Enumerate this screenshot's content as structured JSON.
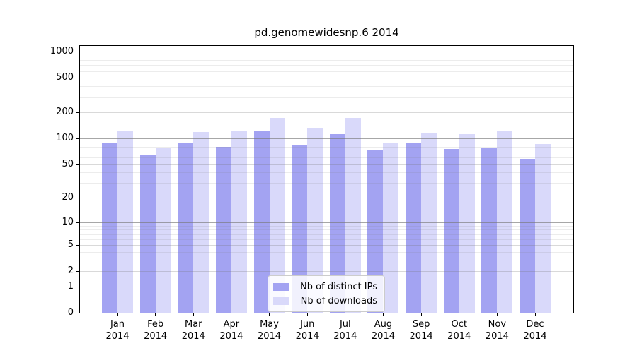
{
  "title": "pd.genomewidesnp.6 2014",
  "chart_data": {
    "type": "bar",
    "title": "pd.genomewidesnp.6 2014",
    "categories": [
      "Jan",
      "Feb",
      "Mar",
      "Apr",
      "May",
      "Jun",
      "Jul",
      "Aug",
      "Sep",
      "Oct",
      "Nov",
      "Dec"
    ],
    "category_year": "2014",
    "series": [
      {
        "name": "Nb of distinct IPs",
        "color": "#a3a3f2",
        "values": [
          87,
          64,
          88,
          80,
          121,
          85,
          112,
          74,
          88,
          75,
          77,
          58
        ]
      },
      {
        "name": "Nb of downloads",
        "color": "#d9d9fa",
        "values": [
          122,
          79,
          118,
          120,
          173,
          130,
          173,
          90,
          115,
          113,
          124,
          86
        ]
      }
    ],
    "xlabel": "",
    "ylabel": "",
    "y_axis": {
      "scale": "log10(value+1)",
      "ticks": [
        0,
        1,
        2,
        5,
        10,
        20,
        50,
        100,
        200,
        500,
        1000
      ],
      "range": [
        0,
        1200
      ],
      "decade_gridlines": [
        1,
        10,
        100,
        1000
      ],
      "mid_gridlines": [
        2,
        5,
        20,
        50,
        200,
        500
      ]
    },
    "grid": true,
    "legend_position": "bottom-center",
    "colors": {
      "gridline_major": "rgba(120,120,120,0.65)",
      "gridline_mid": "rgba(120,120,120,0.28)",
      "gridline_minor": "rgba(120,120,120,0.14)",
      "spine": "#000000",
      "legend_border": "#cccccc",
      "legend_background": "rgba(255,255,255,0.85)"
    }
  }
}
